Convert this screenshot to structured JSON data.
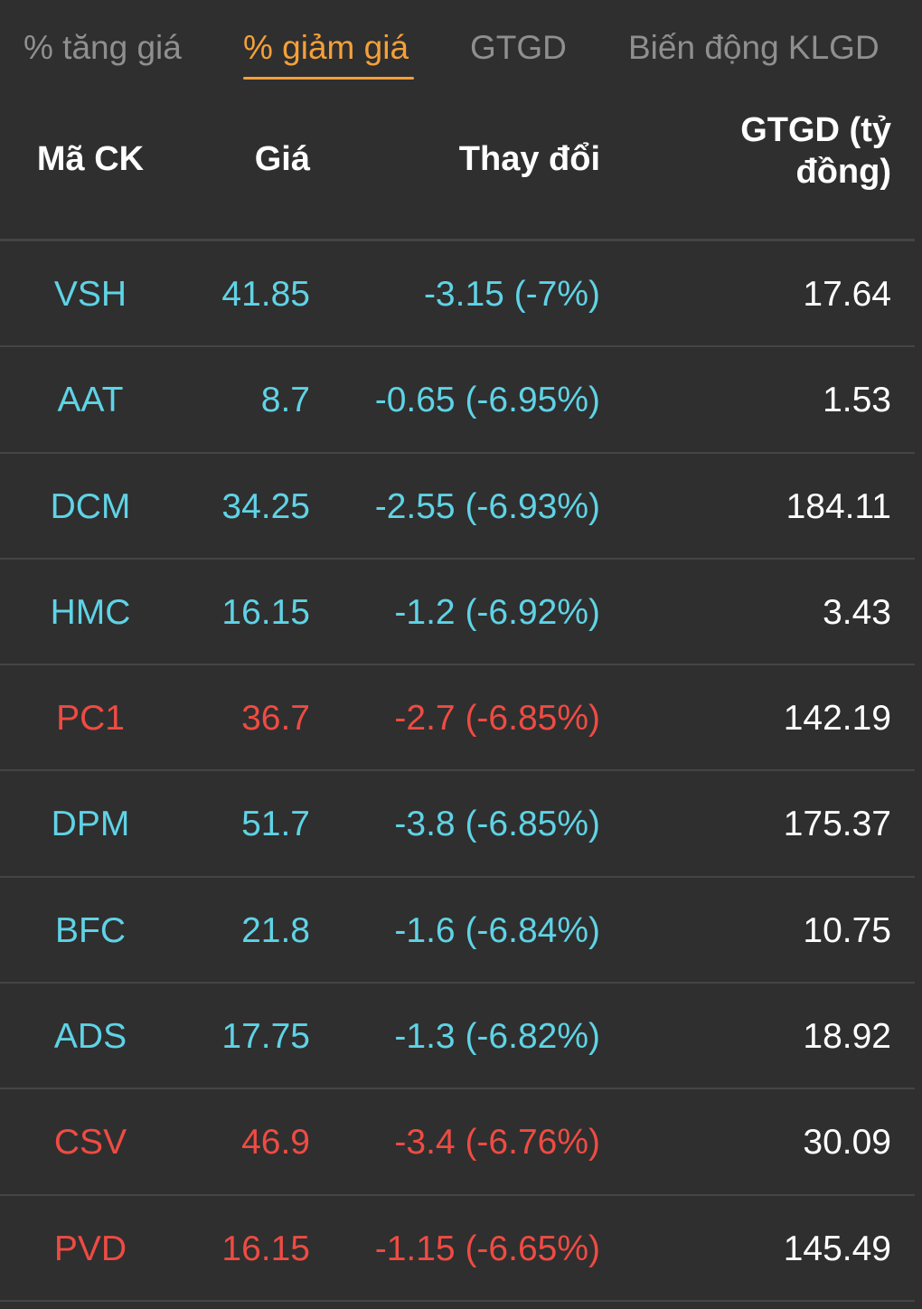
{
  "tabs": [
    {
      "label": "% tăng giá",
      "active": false
    },
    {
      "label": "% giảm giá",
      "active": true
    },
    {
      "label": "GTGD",
      "active": false
    },
    {
      "label": "Biến động KLGD",
      "active": false
    }
  ],
  "colors": {
    "background": "#2f2f2f",
    "active_tab": "#f4a03a",
    "inactive_tab": "#8f8f8f",
    "floor_price": "#5fd3e6",
    "decrease": "#ef4b43",
    "value_text": "#ffffff",
    "divider": "#454545"
  },
  "table": {
    "headers": {
      "code": "Mã CK",
      "price": "Giá",
      "change": "Thay đổi",
      "value_line1": "GTGD (tỷ",
      "value_line2": "đồng)"
    },
    "rows": [
      {
        "code": "VSH",
        "price": "41.85",
        "change": "-3.15 (-7%)",
        "value": "17.64",
        "status": "floor"
      },
      {
        "code": "AAT",
        "price": "8.7",
        "change": "-0.65 (-6.95%)",
        "value": "1.53",
        "status": "floor"
      },
      {
        "code": "DCM",
        "price": "34.25",
        "change": "-2.55 (-6.93%)",
        "value": "184.11",
        "status": "floor"
      },
      {
        "code": "HMC",
        "price": "16.15",
        "change": "-1.2 (-6.92%)",
        "value": "3.43",
        "status": "floor"
      },
      {
        "code": "PC1",
        "price": "36.7",
        "change": "-2.7 (-6.85%)",
        "value": "142.19",
        "status": "down"
      },
      {
        "code": "DPM",
        "price": "51.7",
        "change": "-3.8 (-6.85%)",
        "value": "175.37",
        "status": "floor"
      },
      {
        "code": "BFC",
        "price": "21.8",
        "change": "-1.6 (-6.84%)",
        "value": "10.75",
        "status": "floor"
      },
      {
        "code": "ADS",
        "price": "17.75",
        "change": "-1.3 (-6.82%)",
        "value": "18.92",
        "status": "floor"
      },
      {
        "code": "CSV",
        "price": "46.9",
        "change": "-3.4 (-6.76%)",
        "value": "30.09",
        "status": "down"
      },
      {
        "code": "PVD",
        "price": "16.15",
        "change": "-1.15 (-6.65%)",
        "value": "145.49",
        "status": "down"
      }
    ]
  }
}
